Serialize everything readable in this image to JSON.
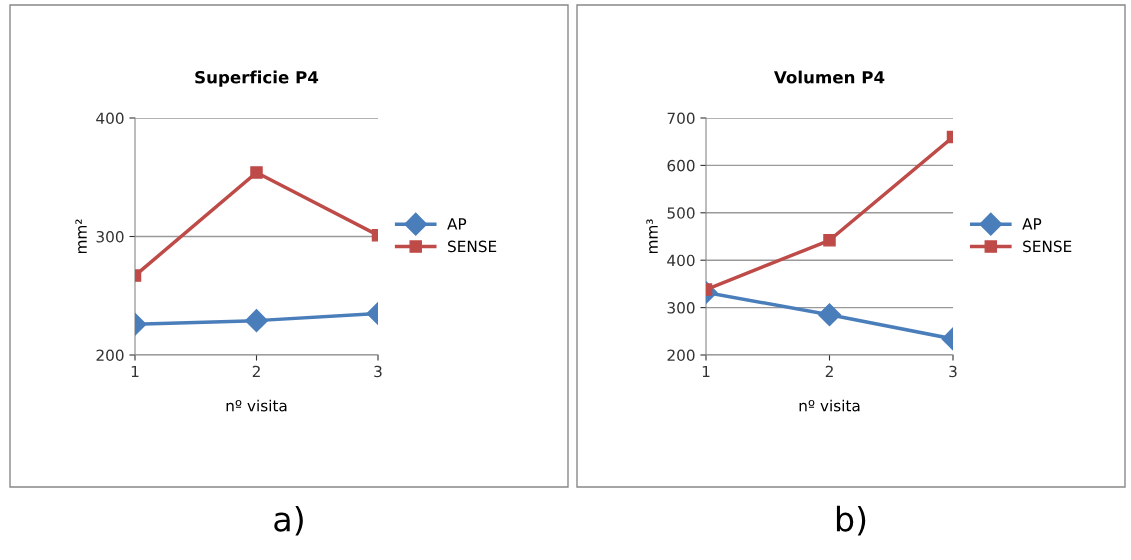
{
  "chart_data": [
    {
      "type": "line",
      "title": "Superficie P4",
      "xlabel": "nº visita",
      "ylabel": "mm²",
      "categories": [
        "1",
        "2",
        "3"
      ],
      "ylim": [
        200,
        400
      ],
      "yticks": [
        200,
        300,
        400
      ],
      "grid": "y",
      "legend": "right",
      "annotations": [
        "a)"
      ],
      "series": [
        {
          "name": "AP",
          "color": "#4a7ebb",
          "marker": "diamond",
          "values": [
            226,
            229,
            235
          ]
        },
        {
          "name": "SENSE",
          "color": "#be4b48",
          "marker": "square",
          "values": [
            267,
            354,
            301
          ]
        }
      ]
    },
    {
      "type": "line",
      "title": "Volumen P4",
      "xlabel": "nº visita",
      "ylabel": "mm³",
      "categories": [
        "1",
        "2",
        "3"
      ],
      "ylim": [
        200,
        700
      ],
      "yticks": [
        200,
        300,
        400,
        500,
        600,
        700
      ],
      "grid": "y",
      "legend": "right",
      "annotations": [
        "b)"
      ],
      "series": [
        {
          "name": "AP",
          "color": "#4a7ebb",
          "marker": "diamond",
          "values": [
            332,
            285,
            234
          ]
        },
        {
          "name": "SENSE",
          "color": "#be4b48",
          "marker": "square",
          "values": [
            338,
            442,
            660
          ]
        }
      ]
    }
  ]
}
